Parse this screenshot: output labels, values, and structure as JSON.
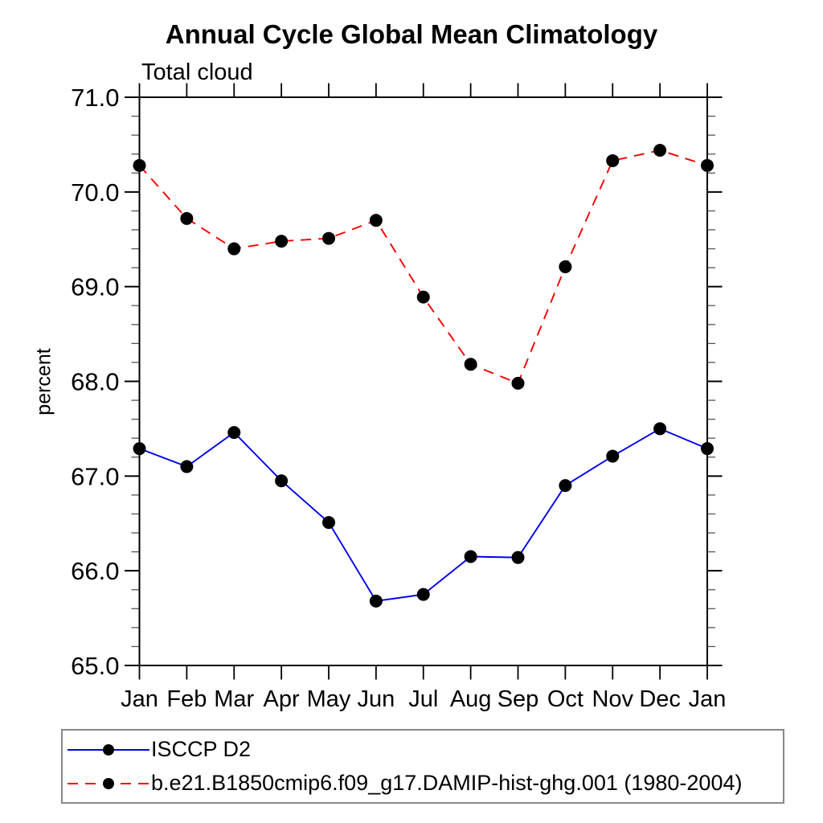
{
  "page": {
    "title": "Annual Cycle Global Mean Climatology",
    "subtitle": "Total cloud",
    "ylabel": "percent"
  },
  "chart_data": {
    "type": "line",
    "title": "Annual Cycle Global Mean Climatology",
    "subtitle": "Total cloud",
    "xlabel": "",
    "ylabel": "percent",
    "categories": [
      "Jan",
      "Feb",
      "Mar",
      "Apr",
      "May",
      "Jun",
      "Jul",
      "Aug",
      "Sep",
      "Oct",
      "Nov",
      "Dec",
      "Jan"
    ],
    "ylim": [
      65.0,
      71.0
    ],
    "ytick_major_interval": 1.0,
    "ytick_minor_interval": 0.2,
    "ytick_labels": [
      "65.0",
      "66.0",
      "67.0",
      "68.0",
      "69.0",
      "70.0",
      "71.0"
    ],
    "grid": false,
    "legend_position": "bottom-box",
    "series": [
      {
        "name": "ISCCP D2",
        "color": "#0000ee",
        "line_style": "solid",
        "marker": "filled-circle",
        "marker_color": "#000000",
        "values": [
          67.29,
          67.1,
          67.46,
          66.95,
          66.51,
          65.68,
          65.75,
          66.15,
          66.14,
          66.9,
          67.21,
          67.5,
          67.29
        ]
      },
      {
        "name": "b.e21.B1850cmip6.f09_g17.DAMIP-hist-ghg.001 (1980-2004)",
        "color": "#f80000",
        "line_style": "dashed",
        "marker": "filled-circle",
        "marker_color": "#000000",
        "values": [
          70.28,
          69.72,
          69.4,
          69.48,
          69.51,
          69.7,
          68.89,
          68.18,
          67.98,
          69.21,
          70.33,
          70.44,
          70.28
        ]
      }
    ],
    "colors": {
      "axis": "#000000",
      "minor_tick": "#555555",
      "legend_border": "#888888",
      "background": "#ffffff"
    }
  }
}
